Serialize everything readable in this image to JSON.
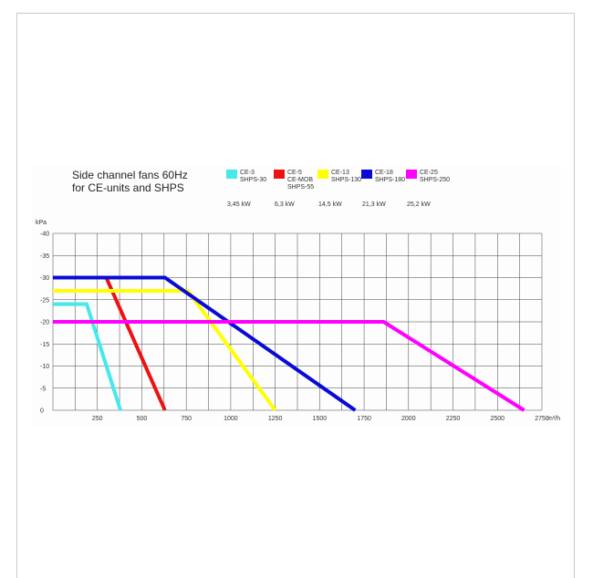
{
  "chart_data": {
    "type": "line",
    "title_lines": [
      "Side channel fans 60Hz",
      "for CE-units and SHPS"
    ],
    "ylabel": "kPa",
    "xunit": "m³/h",
    "xlim": [
      0,
      2750
    ],
    "ylim": [
      0,
      -40
    ],
    "x_ticks": [
      "250",
      "500",
      "750",
      "1000",
      "1250",
      "1500",
      "1750",
      "2000",
      "2250",
      "2500",
      "2750"
    ],
    "y_ticks": [
      "-40",
      "-35",
      "-30",
      "-25",
      "-20",
      "-15",
      "-10",
      "-5",
      "0"
    ],
    "grid": true,
    "legend_position": "top",
    "series": [
      {
        "name_lines": [
          "CE-3",
          "SHPS-30"
        ],
        "power": "3,45 kW",
        "color": "#45e8ec",
        "points": [
          [
            0,
            -24
          ],
          [
            190,
            -24
          ],
          [
            380,
            0
          ]
        ]
      },
      {
        "name_lines": [
          "CE-5",
          "CE-MOB",
          "SHPS-55"
        ],
        "power": "6,3 kW",
        "color": "#ee1111",
        "points": [
          [
            300,
            -30
          ],
          [
            630,
            0
          ]
        ]
      },
      {
        "name_lines": [
          "CE-13",
          "SHPS-130"
        ],
        "power": "14,5 kW",
        "color": "#ffff00",
        "points": [
          [
            0,
            -27
          ],
          [
            760,
            -27
          ],
          [
            1250,
            0
          ]
        ]
      },
      {
        "name_lines": [
          "CE-18",
          "SHPS-180"
        ],
        "power": "21,3 kW",
        "color": "#0a0ad8",
        "points": [
          [
            0,
            -30
          ],
          [
            630,
            -30
          ],
          [
            1700,
            0
          ]
        ]
      },
      {
        "name_lines": [
          "CE-25",
          "SHPS-250"
        ],
        "power": "25,2 kW",
        "color": "#ff00ff",
        "points": [
          [
            0,
            -20
          ],
          [
            1860,
            -20
          ],
          [
            2650,
            0
          ]
        ]
      }
    ]
  }
}
